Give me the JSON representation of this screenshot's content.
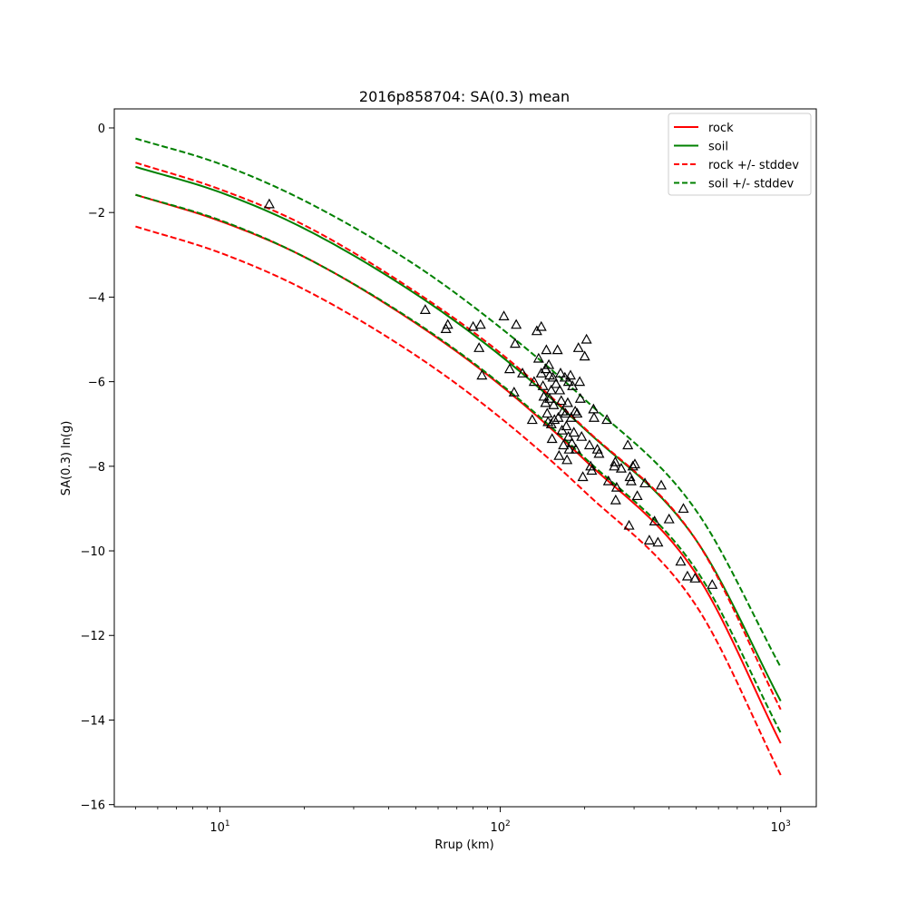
{
  "chart_data": {
    "type": "scatter",
    "title": "2016p858704: SA(0.3) mean",
    "xlabel": "Rrup (km)",
    "ylabel": "SA(0.3) ln(g)",
    "xscale": "log",
    "xlim": [
      4.2,
      1340
    ],
    "ylim": [
      -16.05,
      0.45
    ],
    "x_ticks": [
      {
        "value": 10,
        "base": "10",
        "exp": "1"
      },
      {
        "value": 100,
        "base": "10",
        "exp": "2"
      },
      {
        "value": 1000,
        "base": "10",
        "exp": "3"
      }
    ],
    "y_ticks": [
      0,
      -2,
      -4,
      -6,
      -8,
      -10,
      -12,
      -14,
      -16
    ],
    "y_tick_labels": [
      "0",
      "−2",
      "−4",
      "−6",
      "−8",
      "−10",
      "−12",
      "−14",
      "−16"
    ],
    "grid": false,
    "legend_position": "top-right",
    "series": [
      {
        "name": "rock",
        "kind": "line",
        "color": "#ff0000",
        "dash": "solid",
        "x": [
          5,
          10,
          20,
          50,
          100,
          200,
          500,
          1000
        ],
        "y": [
          -1.58,
          -2.2,
          -3.05,
          -4.62,
          -6.08,
          -7.85,
          -10.55,
          -14.55
        ]
      },
      {
        "name": "soil",
        "kind": "line",
        "color": "#008000",
        "dash": "solid",
        "x": [
          5,
          10,
          20,
          50,
          100,
          200,
          500,
          1000
        ],
        "y": [
          -0.92,
          -1.52,
          -2.38,
          -3.93,
          -5.38,
          -7.12,
          -9.75,
          -13.55
        ]
      },
      {
        "name": "rock +/- stddev",
        "kind": "line",
        "color": "#ff0000",
        "dash": "dashed",
        "x": [
          5,
          10,
          20,
          50,
          100,
          200,
          500,
          1000
        ],
        "y": [
          -0.82,
          -1.45,
          -2.3,
          -3.88,
          -5.32,
          -7.1,
          -9.75,
          -13.75
        ]
      },
      {
        "name": "",
        "kind": "line",
        "color": "#ff0000",
        "dash": "dashed",
        "x": [
          5,
          10,
          20,
          50,
          100,
          200,
          500,
          1000
        ],
        "y": [
          -2.33,
          -2.95,
          -3.82,
          -5.38,
          -6.85,
          -8.6,
          -11.3,
          -15.3
        ]
      },
      {
        "name": "soil +/- stddev",
        "kind": "line",
        "color": "#008000",
        "dash": "dashed",
        "x": [
          5,
          10,
          20,
          50,
          100,
          200,
          500,
          1000
        ],
        "y": [
          -0.25,
          -0.85,
          -1.72,
          -3.25,
          -4.72,
          -6.42,
          -9.05,
          -12.75
        ]
      },
      {
        "name": "",
        "kind": "line",
        "color": "#008000",
        "dash": "dashed",
        "x": [
          5,
          10,
          20,
          50,
          100,
          200,
          500,
          1000
        ],
        "y": [
          -1.58,
          -2.18,
          -3.05,
          -4.6,
          -6.05,
          -7.8,
          -10.45,
          -14.3
        ]
      },
      {
        "name": "",
        "kind": "scatter",
        "marker": "triangle",
        "color": "#000000",
        "points": [
          [
            15,
            -1.8
          ],
          [
            54,
            -4.3
          ],
          [
            64,
            -4.75
          ],
          [
            65,
            -4.65
          ],
          [
            80,
            -4.7
          ],
          [
            85,
            -4.65
          ],
          [
            84,
            -5.2
          ],
          [
            86,
            -5.85
          ],
          [
            103,
            -4.45
          ],
          [
            108,
            -5.7
          ],
          [
            112,
            -6.25
          ],
          [
            114,
            -4.65
          ],
          [
            113,
            -5.1
          ],
          [
            120,
            -5.8
          ],
          [
            130,
            -6.9
          ],
          [
            132,
            -6.0
          ],
          [
            135,
            -4.8
          ],
          [
            137,
            -5.45
          ],
          [
            140,
            -4.7
          ],
          [
            140,
            -5.8
          ],
          [
            142,
            -6.1
          ],
          [
            143,
            -6.35
          ],
          [
            145,
            -5.7
          ],
          [
            145,
            -6.5
          ],
          [
            146,
            -5.25
          ],
          [
            147,
            -6.75
          ],
          [
            148,
            -6.95
          ],
          [
            149,
            -5.6
          ],
          [
            150,
            -5.85
          ],
          [
            150,
            -6.4
          ],
          [
            152,
            -7.0
          ],
          [
            152,
            -6.2
          ],
          [
            153,
            -7.35
          ],
          [
            154,
            -5.9
          ],
          [
            155,
            -6.55
          ],
          [
            156,
            -6.9
          ],
          [
            158,
            -6.05
          ],
          [
            160,
            -5.25
          ],
          [
            161,
            -6.85
          ],
          [
            162,
            -7.75
          ],
          [
            163,
            -6.2
          ],
          [
            164,
            -5.8
          ],
          [
            165,
            -6.45
          ],
          [
            166,
            -7.15
          ],
          [
            167,
            -6.7
          ],
          [
            168,
            -7.5
          ],
          [
            170,
            -5.9
          ],
          [
            171,
            -6.75
          ],
          [
            172,
            -7.05
          ],
          [
            173,
            -7.85
          ],
          [
            174,
            -6.5
          ],
          [
            175,
            -7.3
          ],
          [
            175,
            -6.0
          ],
          [
            176,
            -7.6
          ],
          [
            178,
            -5.85
          ],
          [
            179,
            -6.85
          ],
          [
            180,
            -7.45
          ],
          [
            181,
            -6.1
          ],
          [
            183,
            -7.2
          ],
          [
            185,
            -6.7
          ],
          [
            186,
            -7.6
          ],
          [
            188,
            -6.75
          ],
          [
            190,
            -5.2
          ],
          [
            192,
            -6.0
          ],
          [
            193,
            -6.4
          ],
          [
            195,
            -7.3
          ],
          [
            197,
            -8.25
          ],
          [
            200,
            -5.4
          ],
          [
            203,
            -5.0
          ],
          [
            208,
            -7.5
          ],
          [
            210,
            -8.0
          ],
          [
            212,
            -8.1
          ],
          [
            215,
            -6.65
          ],
          [
            216,
            -6.85
          ],
          [
            222,
            -7.6
          ],
          [
            225,
            -7.7
          ],
          [
            240,
            -6.9
          ],
          [
            243,
            -8.35
          ],
          [
            255,
            -8.0
          ],
          [
            257,
            -7.9
          ],
          [
            258,
            -8.8
          ],
          [
            260,
            -8.5
          ],
          [
            270,
            -8.05
          ],
          [
            285,
            -7.5
          ],
          [
            288,
            -9.4
          ],
          [
            290,
            -8.25
          ],
          [
            293,
            -8.35
          ],
          [
            297,
            -8.0
          ],
          [
            302,
            -7.95
          ],
          [
            308,
            -8.7
          ],
          [
            328,
            -8.4
          ],
          [
            340,
            -9.75
          ],
          [
            355,
            -9.3
          ],
          [
            365,
            -9.8
          ],
          [
            375,
            -8.45
          ],
          [
            400,
            -9.25
          ],
          [
            440,
            -10.25
          ],
          [
            450,
            -9.0
          ],
          [
            465,
            -10.6
          ],
          [
            495,
            -10.65
          ],
          [
            570,
            -10.8
          ]
        ]
      }
    ]
  }
}
